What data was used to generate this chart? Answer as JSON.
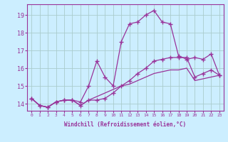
{
  "xlabel": "Windchill (Refroidissement éolien,°C)",
  "background_color": "#cceeff",
  "line_color": "#993399",
  "grid_color": "#aacccc",
  "hours": [
    0,
    1,
    2,
    3,
    4,
    5,
    6,
    7,
    8,
    9,
    10,
    11,
    12,
    13,
    14,
    15,
    16,
    17,
    18,
    19,
    20,
    21,
    22,
    23
  ],
  "temp": [
    14.3,
    13.9,
    13.8,
    14.1,
    14.2,
    14.2,
    14.1,
    15.0,
    16.4,
    15.5,
    15.0,
    17.5,
    18.5,
    18.6,
    19.0,
    19.25,
    18.6,
    18.5,
    16.7,
    16.5,
    16.6,
    16.5,
    16.8,
    15.6
  ],
  "windchill": [
    14.3,
    13.9,
    13.8,
    14.1,
    14.2,
    14.2,
    13.9,
    14.2,
    14.2,
    14.3,
    14.6,
    15.0,
    15.3,
    15.7,
    16.0,
    16.4,
    16.5,
    16.6,
    16.6,
    16.6,
    15.5,
    15.7,
    15.9,
    15.6
  ],
  "smooth": [
    14.3,
    13.9,
    13.8,
    14.1,
    14.2,
    14.2,
    13.9,
    14.2,
    14.4,
    14.6,
    14.8,
    15.0,
    15.1,
    15.3,
    15.5,
    15.7,
    15.8,
    15.9,
    15.9,
    16.0,
    15.3,
    15.4,
    15.5,
    15.6
  ],
  "ylim": [
    13.6,
    19.6
  ],
  "xlim": [
    -0.5,
    23.5
  ],
  "yticks": [
    14,
    15,
    16,
    17,
    18,
    19
  ],
  "xticks": [
    0,
    1,
    2,
    3,
    4,
    5,
    6,
    7,
    8,
    9,
    10,
    11,
    12,
    13,
    14,
    15,
    16,
    17,
    18,
    19,
    20,
    21,
    22,
    23
  ]
}
